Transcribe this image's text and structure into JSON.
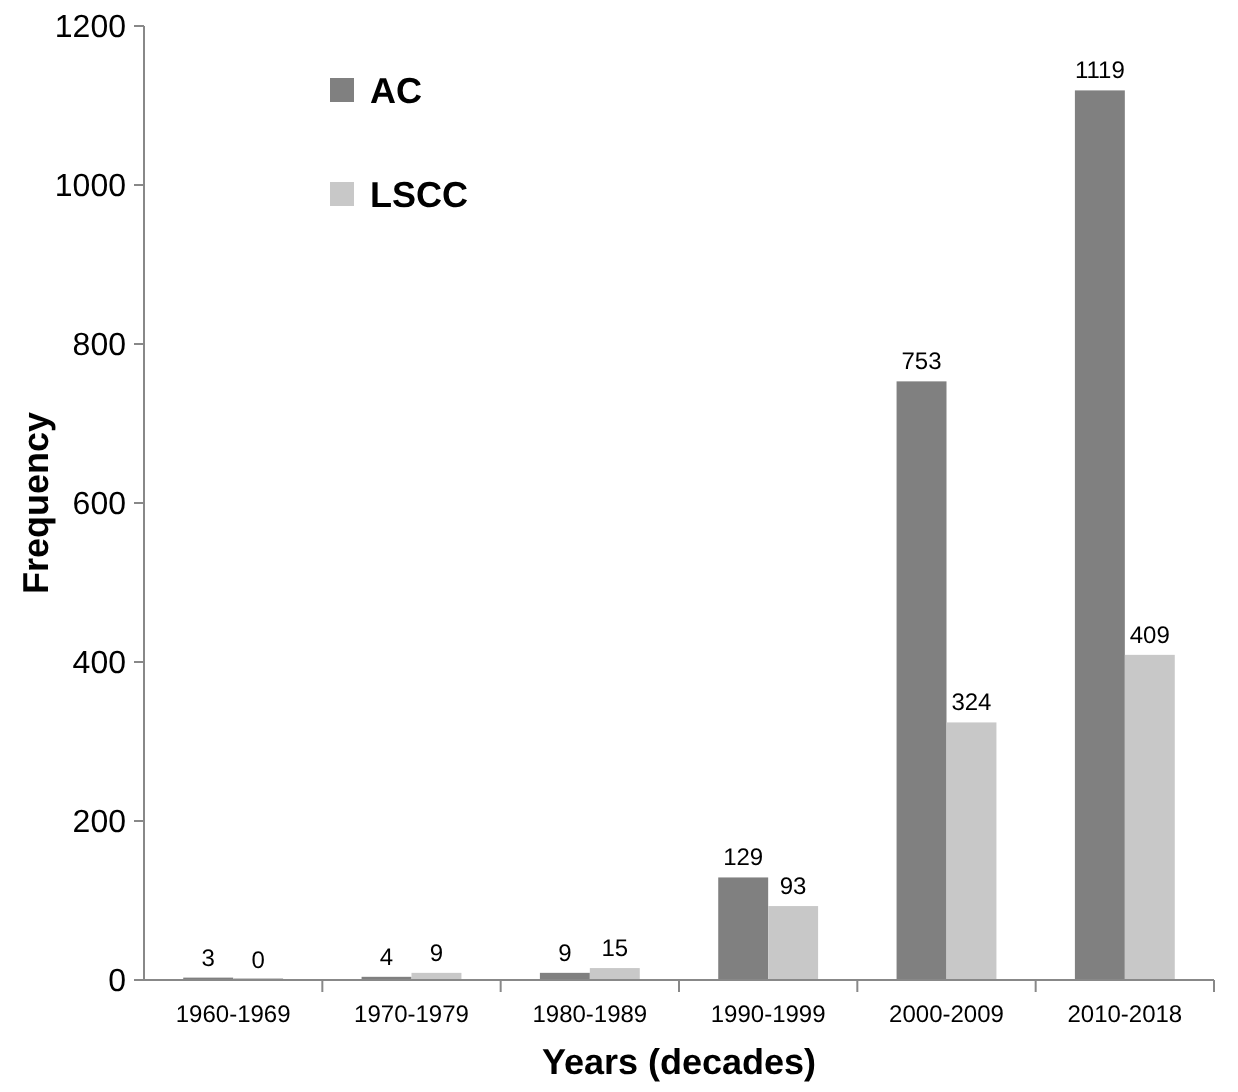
{
  "chart_data": {
    "type": "bar",
    "xlabel": "Years (decades)",
    "ylabel": "Frequency",
    "categories": [
      "1960-1969",
      "1970-1979",
      "1980-1989",
      "1990-1999",
      "2000-2009",
      "2010-2018"
    ],
    "series": [
      {
        "name": "AC",
        "color": "#808080",
        "values": [
          3,
          4,
          9,
          129,
          753,
          1119
        ]
      },
      {
        "name": "LSCC",
        "color": "#c8c8c8",
        "values": [
          0,
          9,
          15,
          93,
          324,
          409
        ]
      }
    ],
    "ylim": [
      0,
      1200
    ],
    "yticks": [
      0,
      200,
      400,
      600,
      800,
      1000,
      1200
    ],
    "data_labels": true,
    "legend": "top left",
    "grid": false
  }
}
